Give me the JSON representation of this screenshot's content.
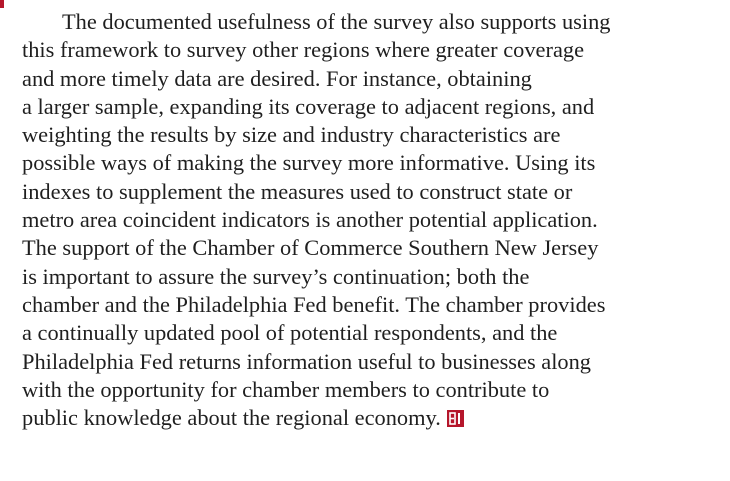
{
  "paragraph": {
    "lines": [
      "The documented usefulness of the survey also supports using",
      "this framework to survey other regions where greater coverage",
      "and more timely data are desired. For instance, obtaining",
      "a larger sample, expanding its coverage to adjacent regions, and",
      "weighting the results by size and industry characteristics are",
      "possible ways of making the survey more informative. Using its",
      "indexes to supplement the measures used to construct state or",
      "metro area coincident indicators is another potential application.",
      "The support of the Chamber of Commerce Southern New Jersey",
      "is important to assure the survey’s continuation; both the",
      "chamber and the Philadelphia Fed benefit. The chamber provides",
      "a continually updated pool of potential respondents, and the",
      "Philadelphia Fed returns information useful to businesses along",
      "with the opportunity for chamber members to contribute to",
      "public knowledge about the regional economy."
    ]
  }
}
